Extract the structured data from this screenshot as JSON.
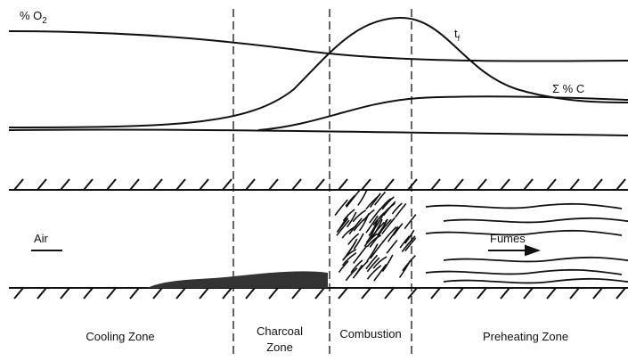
{
  "curve_labels": {
    "oxygen": {
      "main": "% O",
      "sub": "2"
    },
    "flame_temperature": {
      "main": "t",
      "sub": "f"
    },
    "carbon": "Σ % C"
  },
  "flow_labels": {
    "air": "Air",
    "fumes": "Fumes"
  },
  "zones": {
    "cooling": "Cooling Zone",
    "charcoal": [
      "Charcoal",
      "Zone"
    ],
    "combustion": "Combustion",
    "preheating": "Preheating Zone"
  }
}
